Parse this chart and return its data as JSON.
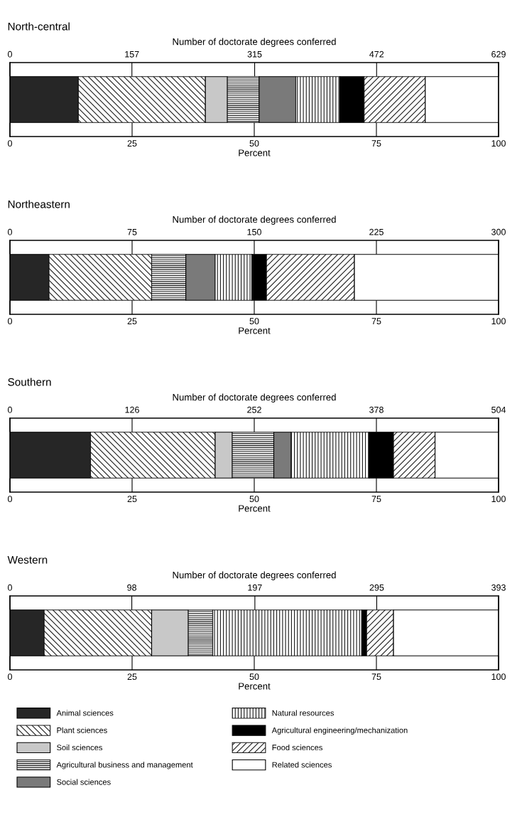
{
  "chart_data": [
    {
      "type": "bar",
      "orientation": "horizontal",
      "stacked": true,
      "title": "North-central",
      "x2label": "Number of doctorate degrees conferred",
      "xlabel": "Percent",
      "categories": [
        null
      ],
      "xlim": [
        0,
        100
      ],
      "xticks": [
        0,
        25,
        50,
        75,
        100
      ],
      "x2lim": [
        0,
        629
      ],
      "x2ticks": [
        0,
        157,
        315,
        472,
        629
      ],
      "series": [
        {
          "color": "#262626",
          "values": [
            14
          ]
        },
        {
          "color": "#1a1a1a",
          "values": [
            26
          ]
        },
        {
          "color": "#c8c8c8",
          "values": [
            4.5
          ]
        },
        {
          "color": "#1a1a1a",
          "values": [
            6.5
          ]
        },
        {
          "color": "#7a7a7a",
          "values": [
            7.5
          ]
        },
        {
          "color": "#1a1a1a",
          "values": [
            9
          ]
        },
        {
          "color": "#000000",
          "values": [
            5
          ]
        },
        {
          "color": "#1a1a1a",
          "values": [
            12.5
          ]
        },
        {
          "color": "#ffffff",
          "values": [
            15
          ]
        }
      ]
    },
    {
      "type": "bar",
      "orientation": "horizontal",
      "stacked": true,
      "title": "Northeastern",
      "x2label": "Number of doctorate degrees conferred",
      "xlabel": "Percent",
      "categories": [
        null
      ],
      "xlim": [
        0,
        100
      ],
      "xticks": [
        0,
        25,
        50,
        75,
        100
      ],
      "x2lim": [
        0,
        300
      ],
      "x2ticks": [
        0,
        75,
        150,
        225,
        300
      ],
      "series": [
        {
          "color": "#262626",
          "values": [
            8
          ]
        },
        {
          "color": "#1a1a1a",
          "values": [
            21
          ]
        },
        {
          "color": "#c8c8c8",
          "values": [
            0
          ]
        },
        {
          "color": "#1a1a1a",
          "values": [
            7
          ]
        },
        {
          "color": "#7a7a7a",
          "values": [
            6
          ]
        },
        {
          "color": "#1a1a1a",
          "values": [
            7.5
          ]
        },
        {
          "color": "#000000",
          "values": [
            3
          ]
        },
        {
          "color": "#1a1a1a",
          "values": [
            18
          ]
        },
        {
          "color": "#ffffff",
          "values": [
            29.5
          ]
        }
      ]
    },
    {
      "type": "bar",
      "orientation": "horizontal",
      "stacked": true,
      "title": "Southern",
      "x2label": "Number of doctorate degrees conferred",
      "xlabel": "Percent",
      "categories": [
        null
      ],
      "xlim": [
        0,
        100
      ],
      "xticks": [
        0,
        25,
        50,
        75,
        100
      ],
      "x2lim": [
        0,
        504
      ],
      "x2ticks": [
        0,
        126,
        252,
        378,
        504
      ],
      "series": [
        {
          "color": "#262626",
          "values": [
            16.5
          ]
        },
        {
          "color": "#1a1a1a",
          "values": [
            25.5
          ]
        },
        {
          "color": "#c8c8c8",
          "values": [
            3.5
          ]
        },
        {
          "color": "#1a1a1a",
          "values": [
            8.5
          ]
        },
        {
          "color": "#7a7a7a",
          "values": [
            3.5
          ]
        },
        {
          "color": "#1a1a1a",
          "values": [
            16
          ]
        },
        {
          "color": "#000000",
          "values": [
            5
          ]
        },
        {
          "color": "#1a1a1a",
          "values": [
            8.5
          ]
        },
        {
          "color": "#ffffff",
          "values": [
            13
          ]
        }
      ]
    },
    {
      "type": "bar",
      "orientation": "horizontal",
      "stacked": true,
      "title": "Western",
      "x2label": "Number of doctorate degrees conferred",
      "xlabel": "Percent",
      "categories": [
        null
      ],
      "xlim": [
        0,
        100
      ],
      "xticks": [
        0,
        25,
        50,
        75,
        100
      ],
      "x2lim": [
        0,
        393
      ],
      "x2ticks": [
        0,
        98,
        197,
        295,
        393
      ],
      "legend": "bottom",
      "series": [
        {
          "name": "Animal sciences",
          "color": "#262626",
          "values": [
            7
          ]
        },
        {
          "name": "Plant sciences",
          "color": "#1a1a1a",
          "values": [
            22
          ]
        },
        {
          "name": "Soil sciences",
          "color": "#c8c8c8",
          "values": [
            7.5
          ]
        },
        {
          "name": "Agricultural business and management",
          "color": "#1a1a1a",
          "values": [
            5
          ]
        },
        {
          "name": "Social sciences",
          "color": "#7a7a7a",
          "values": [
            0
          ]
        },
        {
          "name": "Natural resources",
          "color": "#1a1a1a",
          "values": [
            30.5
          ]
        },
        {
          "name": "Agricultural engineering/mechanization",
          "color": "#000000",
          "values": [
            1
          ]
        },
        {
          "name": "Food sciences",
          "color": "#1a1a1a",
          "values": [
            5.5
          ]
        },
        {
          "name": "Related sciences",
          "color": "#ffffff",
          "values": [
            21.5
          ]
        }
      ]
    }
  ]
}
